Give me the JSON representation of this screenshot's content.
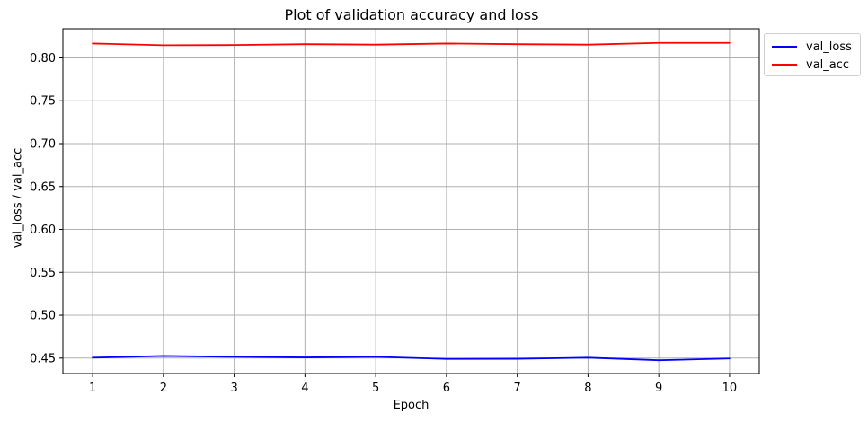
{
  "chart_data": {
    "type": "line",
    "title": "Plot of validation accuracy and loss",
    "xlabel": "Epoch",
    "ylabel": "val_loss / val_acc",
    "x": [
      1,
      2,
      3,
      4,
      5,
      6,
      7,
      8,
      9,
      10
    ],
    "xlim": [
      0.58,
      10.42
    ],
    "ylim": [
      0.432,
      0.834
    ],
    "xticks": [
      1,
      2,
      3,
      4,
      5,
      6,
      7,
      8,
      9,
      10
    ],
    "yticks": [
      0.45,
      0.5,
      0.55,
      0.6,
      0.65,
      0.7,
      0.75,
      0.8
    ],
    "ytick_labels": [
      "0.45",
      "0.50",
      "0.55",
      "0.60",
      "0.65",
      "0.70",
      "0.75",
      "0.80"
    ],
    "grid": true,
    "legend_position": "outside-top-right",
    "series": [
      {
        "name": "val_loss",
        "color": "#0000ff",
        "values": [
          0.4505,
          0.4525,
          0.4515,
          0.4508,
          0.4515,
          0.449,
          0.4492,
          0.4505,
          0.4475,
          0.4495
        ]
      },
      {
        "name": "val_acc",
        "color": "#ff0000",
        "values": [
          0.8168,
          0.8148,
          0.815,
          0.816,
          0.8155,
          0.8168,
          0.816,
          0.8155,
          0.8175,
          0.8175
        ]
      }
    ]
  }
}
